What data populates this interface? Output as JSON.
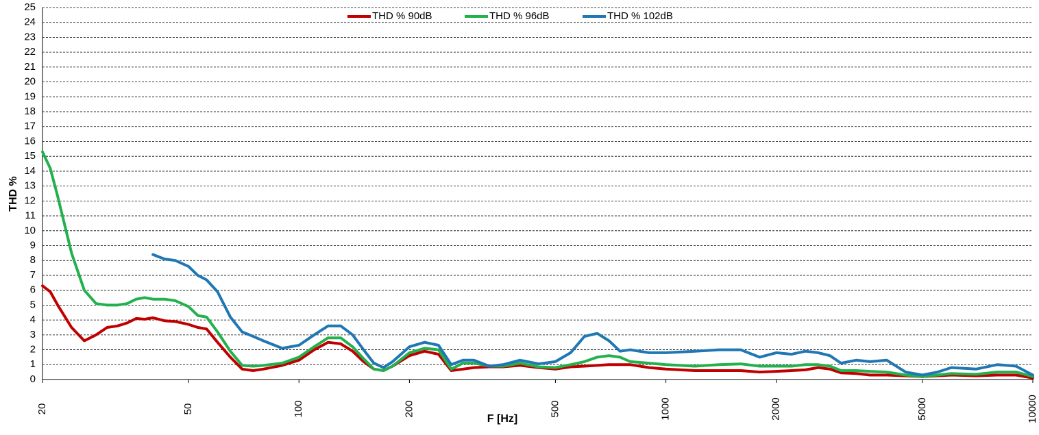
{
  "chart_data": {
    "type": "line",
    "x_label": "F [Hz]",
    "y_label": "THD %",
    "x": [
      20,
      21,
      22,
      24,
      26,
      28,
      30,
      32,
      34,
      36,
      38,
      40,
      43,
      46,
      50,
      53,
      56,
      60,
      65,
      70,
      75,
      80,
      90,
      100,
      110,
      120,
      130,
      140,
      150,
      160,
      170,
      180,
      200,
      220,
      240,
      260,
      280,
      300,
      330,
      360,
      400,
      450,
      500,
      550,
      600,
      650,
      700,
      750,
      800,
      900,
      1000,
      1200,
      1400,
      1600,
      1800,
      2000,
      2200,
      2400,
      2600,
      2800,
      3000,
      3300,
      3600,
      4000,
      4500,
      5000,
      5500,
      6000,
      7000,
      8000,
      9000,
      10000
    ],
    "series": [
      {
        "name": "THD % 90dB",
        "color": "#c00000",
        "values": [
          6.3,
          5.9,
          5.0,
          3.5,
          2.6,
          3.0,
          3.5,
          3.6,
          3.8,
          4.1,
          4.05,
          4.15,
          3.95,
          3.9,
          3.7,
          3.5,
          3.4,
          2.5,
          1.5,
          0.7,
          0.6,
          0.7,
          0.95,
          1.3,
          2.0,
          2.5,
          2.4,
          1.9,
          1.2,
          0.7,
          0.6,
          0.9,
          1.6,
          1.9,
          1.7,
          0.6,
          0.7,
          0.8,
          0.85,
          0.85,
          0.95,
          0.8,
          0.7,
          0.85,
          0.9,
          0.95,
          1.0,
          1.0,
          1.0,
          0.8,
          0.7,
          0.6,
          0.6,
          0.6,
          0.5,
          0.55,
          0.6,
          0.65,
          0.8,
          0.7,
          0.45,
          0.4,
          0.3,
          0.3,
          0.25,
          0.2,
          0.25,
          0.3,
          0.25,
          0.3,
          0.3,
          0.1
        ]
      },
      {
        "name": "THD % 96dB",
        "color": "#22b14c",
        "values": [
          15.3,
          14.2,
          12.3,
          8.5,
          6.0,
          5.1,
          5.0,
          5.0,
          5.1,
          5.4,
          5.5,
          5.4,
          5.4,
          5.3,
          4.9,
          4.3,
          4.2,
          3.2,
          1.9,
          0.95,
          0.9,
          0.95,
          1.1,
          1.5,
          2.2,
          2.8,
          2.8,
          2.2,
          1.4,
          0.7,
          0.6,
          0.9,
          1.8,
          2.1,
          2.0,
          0.7,
          1.1,
          1.1,
          0.9,
          0.9,
          1.1,
          0.85,
          0.8,
          1.0,
          1.2,
          1.5,
          1.6,
          1.5,
          1.2,
          1.1,
          1.0,
          0.9,
          1.0,
          1.05,
          0.9,
          0.9,
          0.9,
          1.0,
          1.0,
          0.9,
          0.6,
          0.6,
          0.55,
          0.5,
          0.3,
          0.2,
          0.3,
          0.4,
          0.35,
          0.5,
          0.5,
          0.2
        ]
      },
      {
        "name": "THD % 102dB",
        "color": "#1f77b4",
        "values": [
          null,
          null,
          null,
          null,
          null,
          null,
          null,
          null,
          null,
          null,
          null,
          8.4,
          8.1,
          8.0,
          7.6,
          7.0,
          6.7,
          5.9,
          4.2,
          3.2,
          2.9,
          2.6,
          2.1,
          2.3,
          3.0,
          3.6,
          3.6,
          3.0,
          2.0,
          1.1,
          0.8,
          1.2,
          2.2,
          2.5,
          2.3,
          1.0,
          1.3,
          1.3,
          0.9,
          1.0,
          1.3,
          1.05,
          1.2,
          1.8,
          2.9,
          3.1,
          2.6,
          1.9,
          2.0,
          1.8,
          1.8,
          1.9,
          2.0,
          2.0,
          1.5,
          1.8,
          1.7,
          1.9,
          1.8,
          1.6,
          1.1,
          1.3,
          1.2,
          1.3,
          0.5,
          0.3,
          0.5,
          0.8,
          0.7,
          1.0,
          0.9,
          0.3
        ]
      }
    ],
    "xlim": [
      20,
      10000
    ],
    "xticks": [
      20,
      50,
      100,
      200,
      500,
      1000,
      2000,
      5000,
      10000
    ],
    "x_log": true,
    "ylim": [
      0,
      25
    ],
    "yticks": [
      0,
      1,
      2,
      3,
      4,
      5,
      6,
      7,
      8,
      9,
      10,
      11,
      12,
      13,
      14,
      15,
      16,
      17,
      18,
      19,
      20,
      21,
      22,
      23,
      24,
      25
    ],
    "grid": true,
    "legend": "top"
  }
}
